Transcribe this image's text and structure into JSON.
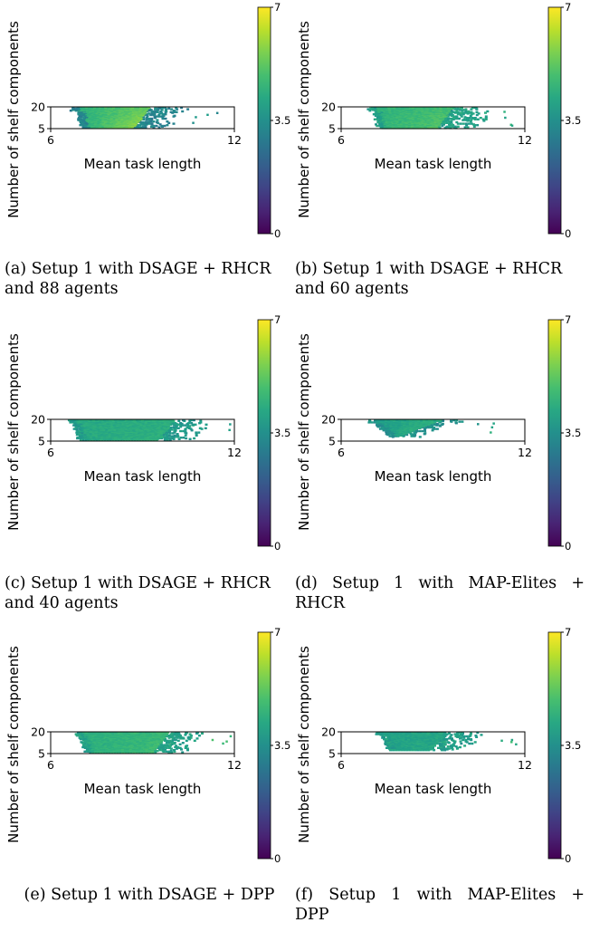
{
  "figure": {
    "panels": [
      {
        "id": "a",
        "caption_lines": [
          "(a) Setup 1 with DSAGE + RHCR",
          "and 88 agents"
        ],
        "chart_data": {
          "type": "heatmap",
          "xlabel": "Mean task length",
          "ylabel": "Number of shelf components",
          "x_ticks": [
            "6",
            "12"
          ],
          "y_ticks": [
            "20",
            "5"
          ],
          "xlim": [
            6,
            12
          ],
          "ylim": [
            5,
            20
          ],
          "colorbar": {
            "min": 0,
            "max": 7,
            "ticks": [
              "0",
              "3.5",
              "7"
            ],
            "colormap": "viridis"
          },
          "fill": {
            "x_start": 6.8,
            "x_core_end": 9.2,
            "x_sparse_end": 10.6,
            "y_top": 19.5,
            "y_bottom": 6,
            "value_left": 4.4,
            "value_right": 6.3,
            "value_edge": 3.2
          }
        }
      },
      {
        "id": "b",
        "caption_lines": [
          "(b) Setup 1 with DSAGE + RHCR",
          "and 60 agents"
        ],
        "chart_data": {
          "type": "heatmap",
          "xlabel": "Mean task length",
          "ylabel": "Number of shelf components",
          "x_ticks": [
            "6",
            "12"
          ],
          "y_ticks": [
            "20",
            "5"
          ],
          "xlim": [
            6,
            12
          ],
          "ylim": [
            5,
            20
          ],
          "colorbar": {
            "min": 0,
            "max": 7,
            "ticks": [
              "0",
              "3.5",
              "7"
            ],
            "colormap": "viridis"
          },
          "fill": {
            "x_start": 7.0,
            "x_core_end": 9.6,
            "x_sparse_end": 11.2,
            "y_top": 19.5,
            "y_bottom": 5.5,
            "value_left": 4.5,
            "value_right": 5.3,
            "value_edge": 4.0
          }
        }
      },
      {
        "id": "c",
        "caption_lines": [
          "(c) Setup 1 with DSAGE + RHCR",
          "and 40 agents"
        ],
        "chart_data": {
          "type": "heatmap",
          "xlabel": "Mean task length",
          "ylabel": "Number of shelf components",
          "x_ticks": [
            "6",
            "12"
          ],
          "y_ticks": [
            "20",
            "5"
          ],
          "xlim": [
            6,
            12
          ],
          "ylim": [
            5,
            20
          ],
          "colorbar": {
            "min": 0,
            "max": 7,
            "ticks": [
              "0",
              "3.5",
              "7"
            ],
            "colormap": "viridis"
          },
          "fill": {
            "x_start": 6.7,
            "x_core_end": 10.0,
            "x_sparse_end": 11.4,
            "y_top": 19.5,
            "y_bottom": 6,
            "value_left": 4.2,
            "value_right": 4.5,
            "value_edge": 3.8
          }
        }
      },
      {
        "id": "d",
        "caption_lines": [
          "(d) Setup 1 with MAP-Elites +",
          "RHCR"
        ],
        "justify": true,
        "chart_data": {
          "type": "heatmap",
          "xlabel": "Mean task length",
          "ylabel": "Number of shelf components",
          "x_ticks": [
            "6",
            "12"
          ],
          "y_ticks": [
            "20",
            "5"
          ],
          "xlim": [
            6,
            12
          ],
          "ylim": [
            5,
            20
          ],
          "colorbar": {
            "min": 0,
            "max": 7,
            "ticks": [
              "0",
              "3.5",
              "7"
            ],
            "colormap": "viridis"
          },
          "fill": {
            "x_start": 7.0,
            "x_core_end": 9.2,
            "x_sparse_end": 10.2,
            "y_top": 19.5,
            "y_bottom": 8,
            "value_left": 3.8,
            "value_right": 4.9,
            "value_edge": 3.5,
            "wedge": true
          }
        }
      },
      {
        "id": "e",
        "caption_lines": [
          "(e) Setup 1 with DSAGE + DPP"
        ],
        "chart_data": {
          "type": "heatmap",
          "xlabel": "Mean task length",
          "ylabel": "Number of shelf components",
          "x_ticks": [
            "6",
            "12"
          ],
          "y_ticks": [
            "20",
            "5"
          ],
          "xlim": [
            6,
            12
          ],
          "ylim": [
            5,
            20
          ],
          "colorbar": {
            "min": 0,
            "max": 7,
            "ticks": [
              "0",
              "3.5",
              "7"
            ],
            "colormap": "viridis"
          },
          "fill": {
            "x_start": 6.9,
            "x_core_end": 9.8,
            "x_sparse_end": 11.1,
            "y_top": 19.5,
            "y_bottom": 6,
            "value_left": 4.4,
            "value_right": 4.9,
            "value_edge": 4.0
          }
        }
      },
      {
        "id": "f",
        "caption_lines": [
          "(f) Setup 1 with MAP-Elites +",
          "DPP"
        ],
        "justify": true,
        "chart_data": {
          "type": "heatmap",
          "xlabel": "Mean task length",
          "ylabel": "Number of shelf components",
          "x_ticks": [
            "6",
            "12"
          ],
          "y_ticks": [
            "20",
            "5"
          ],
          "xlim": [
            6,
            12
          ],
          "ylim": [
            5,
            20
          ],
          "colorbar": {
            "min": 0,
            "max": 7,
            "ticks": [
              "0",
              "3.5",
              "7"
            ],
            "colormap": "viridis"
          },
          "fill": {
            "x_start": 7.3,
            "x_core_end": 9.4,
            "x_sparse_end": 10.8,
            "y_top": 19.5,
            "y_bottom": 7.5,
            "value_left": 4.0,
            "value_right": 4.3,
            "value_edge": 3.9
          }
        }
      }
    ]
  }
}
